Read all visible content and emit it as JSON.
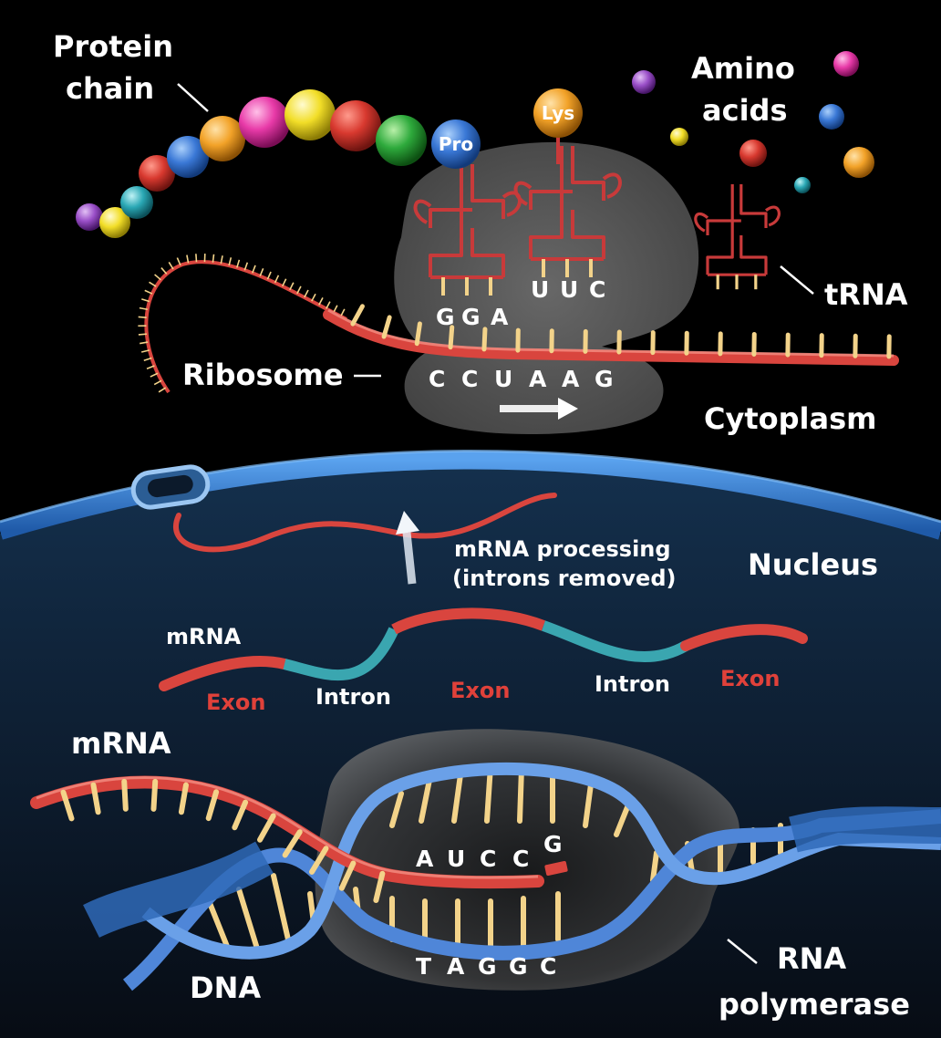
{
  "labels": {
    "protein_chain_1": "Protein",
    "protein_chain_2": "chain",
    "amino_acids_1": "Amino",
    "amino_acids_2": "acids",
    "trna": "tRNA",
    "ribosome": "Ribosome",
    "cytoplasm": "Cytoplasm",
    "nucleus": "Nucleus",
    "mrna_processing_1": "mRNA processing",
    "mrna_processing_2": "(introns removed)",
    "mrna_small": "mRNA",
    "mrna_large": "mRNA",
    "exon_1": "Exon",
    "intron_1": "Intron",
    "exon_2": "Exon",
    "intron_2": "Intron",
    "exon_3": "Exon",
    "dna": "DNA",
    "rna_polymerase_1": "RNA",
    "rna_polymerase_2": "polymerase"
  },
  "amino_acid_tags": {
    "pro": "Pro",
    "lys": "Lys"
  },
  "codons": {
    "anticodon_1": [
      "G",
      "G",
      "A"
    ],
    "anticodon_2": [
      "U",
      "U",
      "C"
    ],
    "mrna_codons": [
      "C",
      "C",
      "U",
      "A",
      "A",
      "G"
    ],
    "transcript": [
      "A",
      "U",
      "C",
      "C"
    ],
    "transcript_next": "G",
    "template": [
      "T",
      "A",
      "G",
      "G",
      "C"
    ]
  },
  "colors": {
    "rna_red": "#d9453e",
    "dna_blue": "#4f86d8",
    "intron_teal": "#3aa6b0",
    "base_yellow": "#f3d38a",
    "cell_blue": "#2f78c9",
    "nucleus_bg": "#0f2238",
    "ribosome_gray": "#6f6f6f",
    "trna_red": "#c83a3a"
  }
}
